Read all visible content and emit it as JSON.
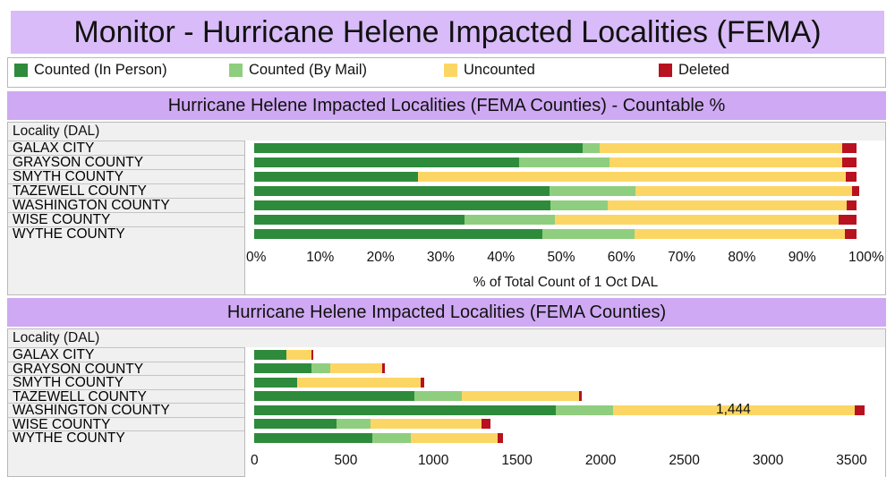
{
  "title": "Monitor - Hurricane Helene Impacted Localities (FEMA)",
  "legend": [
    {
      "label": "Counted (In Person)",
      "color": "#2e8b3c"
    },
    {
      "label": "Counted (By Mail)",
      "color": "#8fce7e"
    },
    {
      "label": "Uncounted",
      "color": "#fcd665"
    },
    {
      "label": "Deleted",
      "color": "#b81120"
    }
  ],
  "chart_data": [
    {
      "type": "bar",
      "orientation": "horizontal",
      "stacked": true,
      "title": "Hurricane Helene Impacted Localities (FEMA Counties) - Countable %",
      "row_header": "Locality (DAL)",
      "xlabel": "% of Total Count of 1 Oct DAL",
      "xlim": [
        0,
        1
      ],
      "x_ticks": [
        "0%",
        "10%",
        "20%",
        "30%",
        "40%",
        "50%",
        "60%",
        "70%",
        "80%",
        "90%",
        "100%"
      ],
      "categories": [
        "GALAX CITY",
        "GRAYSON COUNTY",
        "SMYTH COUNTY",
        "TAZEWELL COUNTY",
        "WASHINGTON COUNTY",
        "WISE COUNTY",
        "WYTHE COUNTY"
      ],
      "series": [
        {
          "name": "Counted (In Person)",
          "values": [
            0.545,
            0.44,
            0.272,
            0.49,
            0.492,
            0.349,
            0.478
          ]
        },
        {
          "name": "Counted (By Mail)",
          "values": [
            0.028,
            0.15,
            0.0,
            0.143,
            0.095,
            0.15,
            0.153
          ]
        },
        {
          "name": "Uncounted",
          "values": [
            0.403,
            0.386,
            0.71,
            0.36,
            0.396,
            0.471,
            0.349
          ]
        },
        {
          "name": "Deleted",
          "values": [
            0.024,
            0.024,
            0.018,
            0.011,
            0.017,
            0.03,
            0.02
          ]
        }
      ]
    },
    {
      "type": "bar",
      "orientation": "horizontal",
      "stacked": true,
      "title": "Hurricane Helene Impacted Localities (FEMA Counties)",
      "row_header": "Locality (DAL)",
      "xlabel": "",
      "xlim": [
        0,
        3600
      ],
      "x_ticks": [
        "0",
        "500",
        "1000",
        "1500",
        "2000",
        "2500",
        "3000",
        "3500"
      ],
      "categories": [
        "GALAX CITY",
        "GRAYSON COUNTY",
        "SMYTH COUNTY",
        "TAZEWELL COUNTY",
        "WASHINGTON COUNTY",
        "WISE COUNTY",
        "WYTHE COUNTY"
      ],
      "series": [
        {
          "name": "Counted (In Person)",
          "values": [
            195,
            340,
            255,
            960,
            1800,
            490,
            705
          ]
        },
        {
          "name": "Counted (By Mail)",
          "values": [
            0,
            115,
            0,
            280,
            345,
            205,
            230
          ]
        },
        {
          "name": "Uncounted",
          "values": [
            145,
            310,
            740,
            700,
            1444,
            665,
            520
          ]
        },
        {
          "name": "Deleted",
          "values": [
            12,
            15,
            20,
            20,
            60,
            50,
            30
          ]
        }
      ],
      "data_labels": [
        {
          "category": "WASHINGTON COUNTY",
          "series": "Uncounted",
          "text": "1,444"
        }
      ]
    }
  ]
}
